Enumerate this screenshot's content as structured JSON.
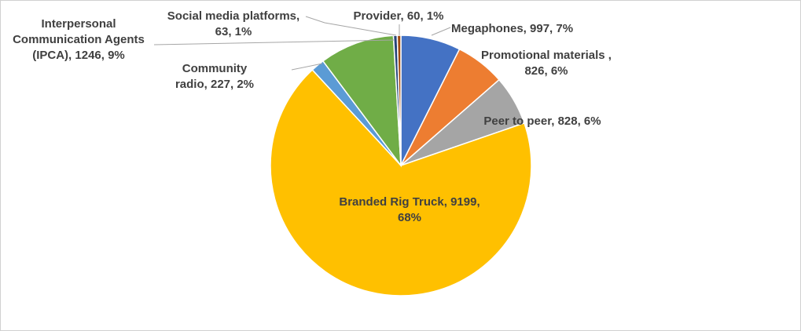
{
  "chart_data": {
    "type": "pie",
    "title": "",
    "series": [
      {
        "name": "",
        "values": [
          997,
          826,
          828,
          9199,
          227,
          1246,
          63,
          60
        ]
      }
    ],
    "categories": [
      "Megaphones",
      "Promotional materials ,",
      "Peer to peer",
      "Branded Rig Truck",
      "Community radio",
      "Interpersonal Communication Agents (IPCA)",
      "Social media platforms,",
      "Provider"
    ],
    "slices": [
      {
        "category": "Megaphones",
        "value": 997,
        "percent": "7%",
        "color": "#4472c4",
        "label_lines": [
          "Megaphones, 997, 7%"
        ]
      },
      {
        "category": "Promotional materials ,",
        "value": 826,
        "percent": "6%",
        "color": "#ed7d31",
        "label_lines": [
          "Promotional materials ,",
          "826, 6%"
        ]
      },
      {
        "category": "Peer to peer",
        "value": 828,
        "percent": "6%",
        "color": "#a5a5a5",
        "label_lines": [
          "Peer to peer, 828, 6%"
        ]
      },
      {
        "category": "Branded Rig Truck",
        "value": 9199,
        "percent": "68%",
        "color": "#ffc000",
        "label_lines": [
          "Branded Rig Truck, 9199,",
          "68%"
        ]
      },
      {
        "category": "Community radio",
        "value": 227,
        "percent": "2%",
        "color": "#5b9bd5",
        "label_lines": [
          "Community",
          "radio, 227, 2%"
        ]
      },
      {
        "category": "Interpersonal Communication Agents (IPCA)",
        "value": 1246,
        "percent": "9%",
        "color": "#70ad47",
        "label_lines": [
          "Interpersonal",
          "Communication Agents",
          "(IPCA), 1246, 9%"
        ]
      },
      {
        "category": "Social media platforms,",
        "value": 63,
        "percent": "1%",
        "color": "#264478",
        "label_lines": [
          "Social media platforms,",
          "63, 1%"
        ]
      },
      {
        "category": "Provider",
        "value": 60,
        "percent": "1%",
        "color": "#9e480e",
        "label_lines": [
          "Provider, 60, 1%"
        ]
      }
    ],
    "legend": "none",
    "data_labels": "category, value, percentage"
  }
}
